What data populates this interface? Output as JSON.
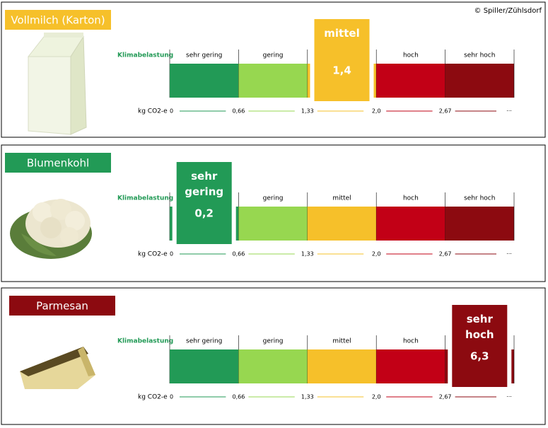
{
  "copyright": "© Spiller/Zühlsdorf",
  "scale": {
    "label": "Klimabelastung",
    "unit_label": "kg CO2-e",
    "levels": [
      {
        "name": "sehr gering",
        "color": "#229a56"
      },
      {
        "name": "gering",
        "color": "#97d750"
      },
      {
        "name": "mittel",
        "color": "#f6c02a"
      },
      {
        "name": "hoch",
        "color": "#c20016"
      },
      {
        "name": "sehr hoch",
        "color": "#8c0a10"
      }
    ],
    "ticks": [
      "0",
      "0,66",
      "1,33",
      "2,0",
      "2,67",
      "···"
    ]
  },
  "products": [
    {
      "name": "Vollmilch  (Karton)",
      "color": "#f6c02a",
      "highlight": "mittel",
      "value": "1,4"
    },
    {
      "name": "Blumenkohl",
      "color": "#229a56",
      "highlight": "sehr gering",
      "value": "0,2"
    },
    {
      "name": "Parmesan",
      "color": "#8c0a10",
      "highlight": "sehr hoch",
      "value": "6,3"
    }
  ]
}
